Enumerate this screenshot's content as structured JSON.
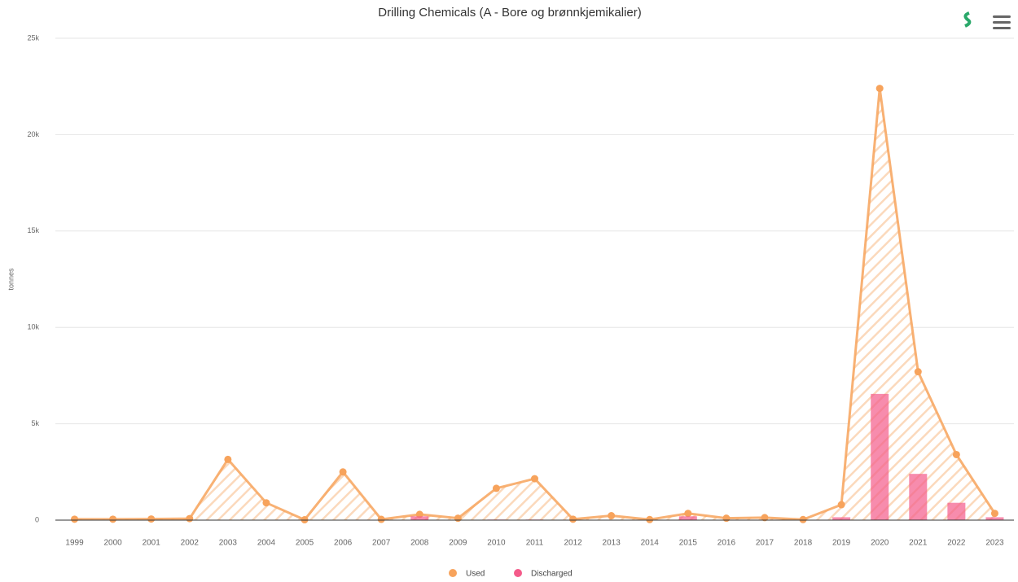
{
  "chart_data": {
    "type": "line_bar",
    "title": "Drilling Chemicals (A - Bore og brønnkjemikalier)",
    "y_label": "tonnes",
    "categories": [
      "1999",
      "2000",
      "2001",
      "2002",
      "2003",
      "2004",
      "2005",
      "2006",
      "2007",
      "2008",
      "2009",
      "2010",
      "2011",
      "2012",
      "2013",
      "2014",
      "2015",
      "2016",
      "2017",
      "2018",
      "2019",
      "2020",
      "2021",
      "2022",
      "2023"
    ],
    "series": [
      {
        "name": "Used",
        "type": "area",
        "color": "#f7a35c",
        "values": [
          50,
          50,
          60,
          80,
          3150,
          900,
          20,
          2500,
          40,
          300,
          100,
          1650,
          2150,
          50,
          230,
          30,
          350,
          100,
          130,
          30,
          800,
          22400,
          7700,
          3400,
          350
        ]
      },
      {
        "name": "Discharged",
        "type": "bar",
        "color": "#f45b8a",
        "values": [
          5,
          5,
          5,
          5,
          5,
          5,
          5,
          5,
          5,
          200,
          5,
          30,
          30,
          5,
          5,
          5,
          200,
          5,
          5,
          5,
          150,
          6550,
          2400,
          900,
          150
        ]
      }
    ],
    "ylim": [
      0,
      25000
    ],
    "yticks": [
      {
        "value": 0,
        "label": "0"
      },
      {
        "value": 5000,
        "label": "5k"
      },
      {
        "value": 10000,
        "label": "10k"
      },
      {
        "value": 15000,
        "label": "15k"
      },
      {
        "value": 20000,
        "label": "20k"
      },
      {
        "value": 25000,
        "label": "25k"
      }
    ],
    "grid": true,
    "legend": "bottom"
  }
}
